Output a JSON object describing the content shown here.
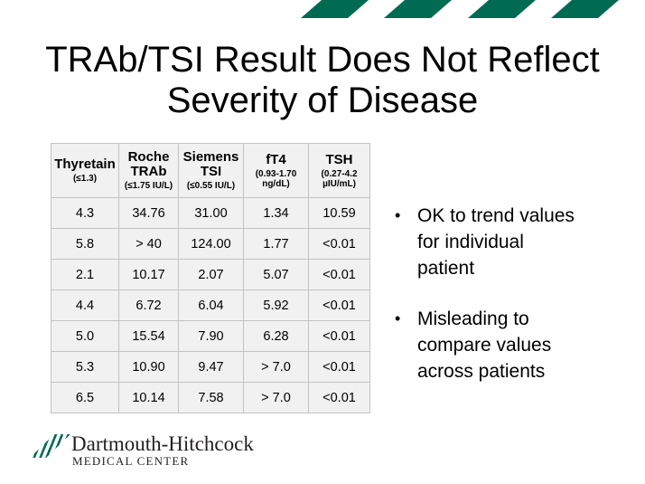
{
  "theme": {
    "accent_green": "#006B52",
    "table_background": "#F1F1F1",
    "table_border": "#C3C3C3",
    "text_color": "#000000"
  },
  "title": {
    "line1": "TRAb/TSI Result Does Not Reflect",
    "line2": "Severity of Disease"
  },
  "table": {
    "columns": [
      {
        "name": "Thyretain",
        "sub": "(≤1.3)"
      },
      {
        "name": "Roche TRAb",
        "sub": "(≤1.75 IU/L)"
      },
      {
        "name": "Siemens TSI",
        "sub": "(≤0.55 IU/L)"
      },
      {
        "name": "fT4",
        "sub": "(0.93-1.70 ng/dL)"
      },
      {
        "name": "TSH",
        "sub": "(0.27-4.2 µIU/mL)"
      }
    ],
    "rows": [
      [
        "4.3",
        "34.76",
        "31.00",
        "1.34",
        "10.59"
      ],
      [
        "5.8",
        "> 40",
        "124.00",
        "1.77",
        "<0.01"
      ],
      [
        "2.1",
        "10.17",
        "2.07",
        "5.07",
        "<0.01"
      ],
      [
        "4.4",
        "6.72",
        "6.04",
        "5.92",
        "<0.01"
      ],
      [
        "5.0",
        "15.54",
        "7.90",
        "6.28",
        "<0.01"
      ],
      [
        "5.3",
        "10.90",
        "9.47",
        "> 7.0",
        "<0.01"
      ],
      [
        "6.5",
        "10.14",
        "7.58",
        "> 7.0",
        "<0.01"
      ]
    ]
  },
  "bullets": {
    "marker": "•",
    "items": [
      "OK to trend values for individual patient",
      "Misleading to compare values across patients"
    ]
  },
  "footer": {
    "org_name": "Dartmouth-Hitchcock",
    "org_subtitle": "MEDICAL CENTER"
  }
}
